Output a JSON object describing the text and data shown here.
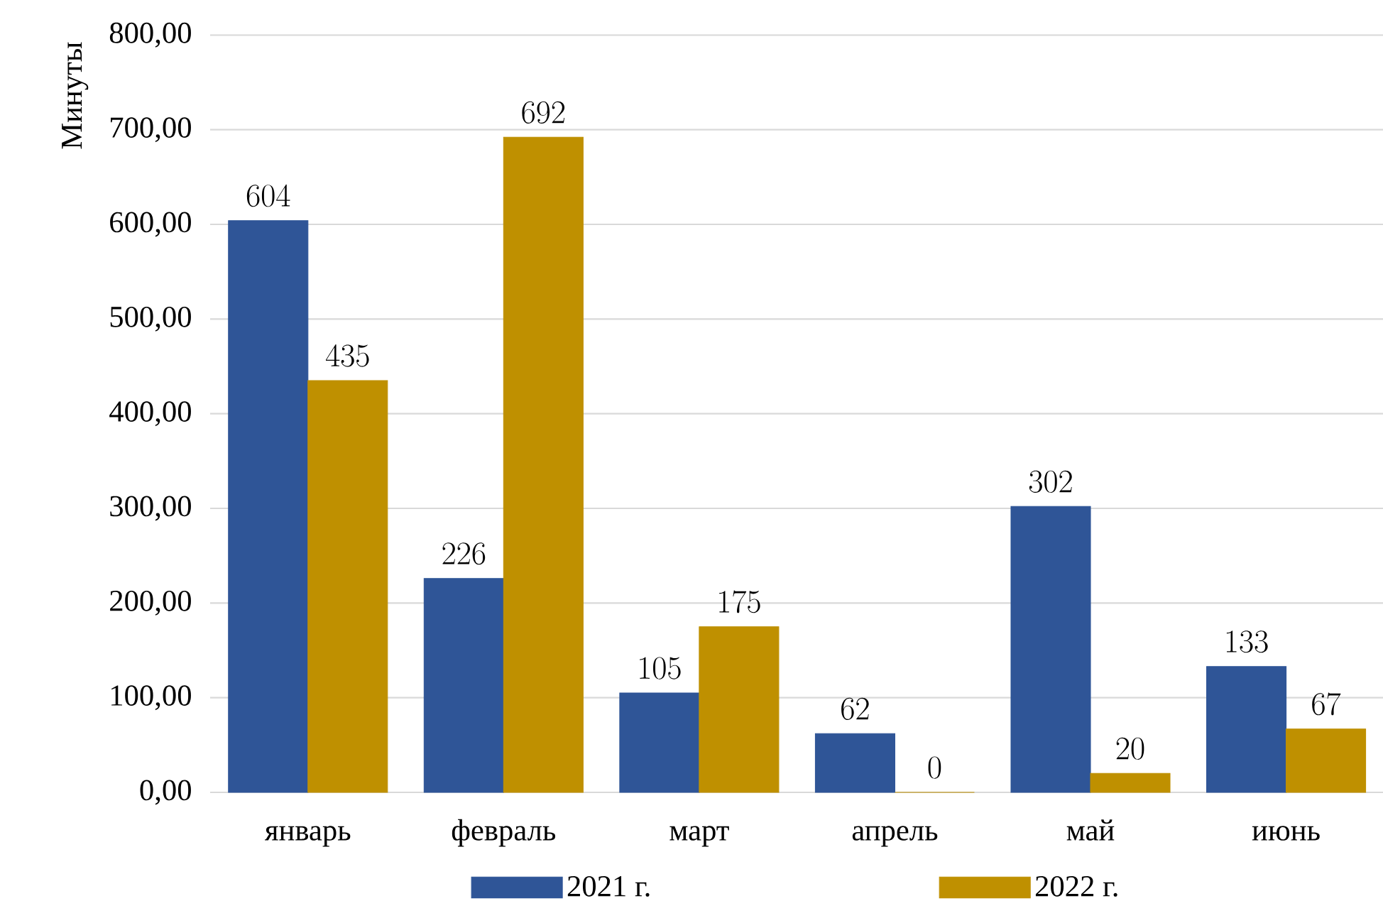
{
  "chart_data": {
    "type": "bar",
    "ylabel": "Минуты",
    "categories": [
      "январь",
      "февраль",
      "март",
      "апрель",
      "май",
      "июнь"
    ],
    "series": [
      {
        "name": "2021 г.",
        "color": "#2f5597",
        "values": [
          604,
          226,
          105,
          62,
          302,
          133
        ]
      },
      {
        "name": "2022 г.",
        "color": "#bf9000",
        "values": [
          435,
          692,
          175,
          0,
          20,
          67
        ]
      }
    ],
    "ylim": [
      0,
      800
    ],
    "yticks": [
      {
        "value": 0,
        "label": "0,00"
      },
      {
        "value": 100,
        "label": "100,00"
      },
      {
        "value": 200,
        "label": "200,00"
      },
      {
        "value": 300,
        "label": "300,00"
      },
      {
        "value": 400,
        "label": "400,00"
      },
      {
        "value": 500,
        "label": "500,00"
      },
      {
        "value": 600,
        "label": "600,00"
      },
      {
        "value": 700,
        "label": "700,00"
      },
      {
        "value": 800,
        "label": "800,00"
      }
    ],
    "grid": "y",
    "legend": "bottom",
    "data_labels": true
  }
}
